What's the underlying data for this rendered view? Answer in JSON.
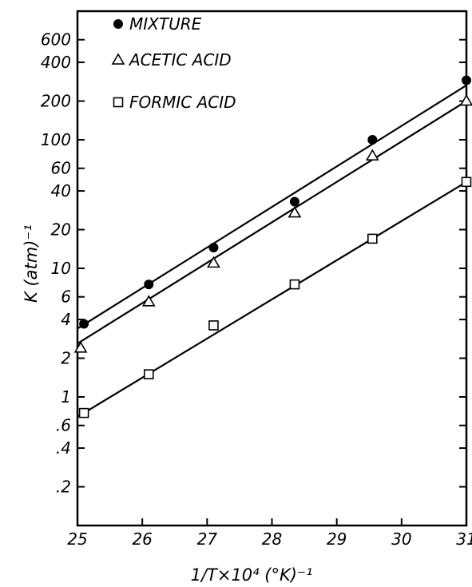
{
  "chart_data": {
    "type": "scatter",
    "title": "",
    "xlabel": "1/T×10⁴ (°K)⁻¹",
    "ylabel": "K (atm)⁻¹",
    "xlim": [
      25,
      31
    ],
    "ylim": [
      0.1,
      1000
    ],
    "yscale": "log",
    "grid": false,
    "legend_position": "top-left",
    "x_ticks": [
      25,
      26,
      27,
      28,
      29,
      30,
      31
    ],
    "x_tick_labels": [
      "25",
      "26",
      "27",
      "28",
      "29",
      "30",
      "31"
    ],
    "y_ticks": [
      0.2,
      0.4,
      0.6,
      1,
      2,
      4,
      6,
      10,
      20,
      40,
      60,
      100,
      200,
      400,
      600
    ],
    "y_tick_labels": [
      ".2",
      ".4",
      ".6",
      "1",
      "2",
      "4",
      "6",
      "10",
      "20",
      "40",
      "60",
      "100",
      "200",
      "400",
      "600"
    ],
    "series": [
      {
        "name": "MIXTURE",
        "marker": "filled-circle",
        "x": [
          25.1,
          26.1,
          27.1,
          28.35,
          29.55,
          31.0
        ],
        "y": [
          3.7,
          7.5,
          14.5,
          33,
          100,
          290
        ],
        "fit_line": {
          "x": [
            25.0,
            31.0
          ],
          "y": [
            3.4,
            265
          ]
        }
      },
      {
        "name": "ACETIC ACID",
        "marker": "open-triangle",
        "x": [
          25.05,
          26.1,
          27.1,
          28.35,
          29.55,
          31.0
        ],
        "y": [
          2.4,
          5.5,
          11,
          27,
          75,
          200
        ],
        "fit_line": {
          "x": [
            25.0,
            31.0
          ],
          "y": [
            2.6,
            200
          ]
        }
      },
      {
        "name": "FORMIC ACID",
        "marker": "open-square",
        "x": [
          25.1,
          26.1,
          27.1,
          28.35,
          29.55,
          31.0
        ],
        "y": [
          0.75,
          1.5,
          3.6,
          7.5,
          17,
          47
        ],
        "fit_line": {
          "x": [
            25.0,
            31.0
          ],
          "y": [
            0.7,
            47
          ]
        }
      }
    ]
  }
}
